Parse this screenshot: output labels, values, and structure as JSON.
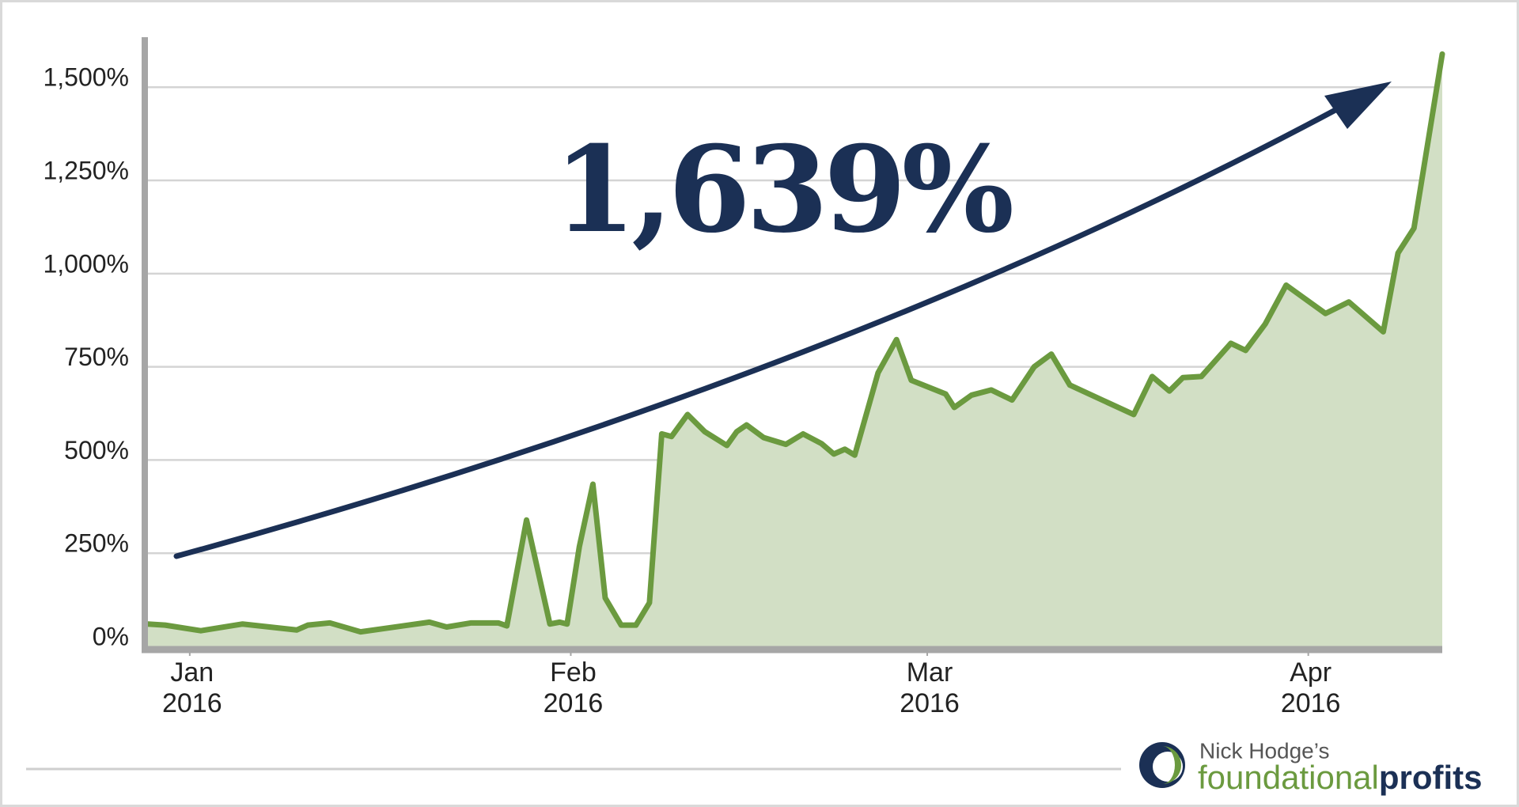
{
  "chart_data": {
    "type": "area",
    "annotation": "1,639%",
    "x": [
      -3.4,
      -2.0,
      0.9,
      4.3,
      8.7,
      9.6,
      11.4,
      13.9,
      19.5,
      20.9,
      22.9,
      25.1,
      25.8,
      27.4,
      29.3,
      30.1,
      30.7,
      31.7,
      32.8,
      33.8,
      35.1,
      36.3,
      37.4,
      38.4,
      39.2,
      40.5,
      41.9,
      43.7,
      44.5,
      45.3,
      46.7,
      48.5,
      49.9,
      51.4,
      52.4,
      53.3,
      54.1,
      56.0,
      57.5,
      58.7,
      61.5,
      62.2,
      63.6,
      65.2,
      66.9,
      68.7,
      70.1,
      71.6,
      76.8,
      78.3,
      79.7,
      80.8,
      82.3,
      84.7,
      85.9,
      87.5,
      89.2,
      92.4,
      94.3,
      97.1,
      98.3,
      99.6,
      101.9
    ],
    "values": [
      60,
      57,
      42,
      60,
      44,
      57,
      63,
      39,
      65,
      52,
      63,
      63,
      55,
      339,
      60,
      65,
      60,
      268,
      435,
      130,
      57,
      57,
      117,
      570,
      563,
      622,
      576,
      539,
      576,
      594,
      560,
      542,
      570,
      544,
      516,
      529,
      513,
      734,
      823,
      714,
      677,
      641,
      674,
      688,
      661,
      750,
      784,
      701,
      622,
      724,
      685,
      721,
      724,
      813,
      794,
      865,
      969,
      893,
      924,
      844,
      1055,
      1122,
      1589
    ],
    "line_color": "#6b9a3f",
    "fill_color": "#d2dfc5",
    "xlim": [
      -3.4,
      101.9
    ],
    "xticks": [
      {
        "value": 0,
        "label": "Jan 2016"
      },
      {
        "value": 31,
        "label": "Feb 2016"
      },
      {
        "value": 60,
        "label": "Mar 2016"
      },
      {
        "value": 91,
        "label": "Apr 2016"
      }
    ],
    "ylim": [
      0,
      1630
    ],
    "yticks": [
      {
        "value": 0,
        "label": "0%"
      },
      {
        "value": 250,
        "label": "250%"
      },
      {
        "value": 500,
        "label": "500%"
      },
      {
        "value": 750,
        "label": "750%"
      },
      {
        "value": 1000,
        "label": "1,000%"
      },
      {
        "value": 1250,
        "label": "1,250%"
      },
      {
        "value": 1500,
        "label": "1,500%"
      }
    ],
    "grid": true
  },
  "logo": {
    "line1": "Nick Hodge’s",
    "name_light": "foundational",
    "name_bold": "profits"
  }
}
